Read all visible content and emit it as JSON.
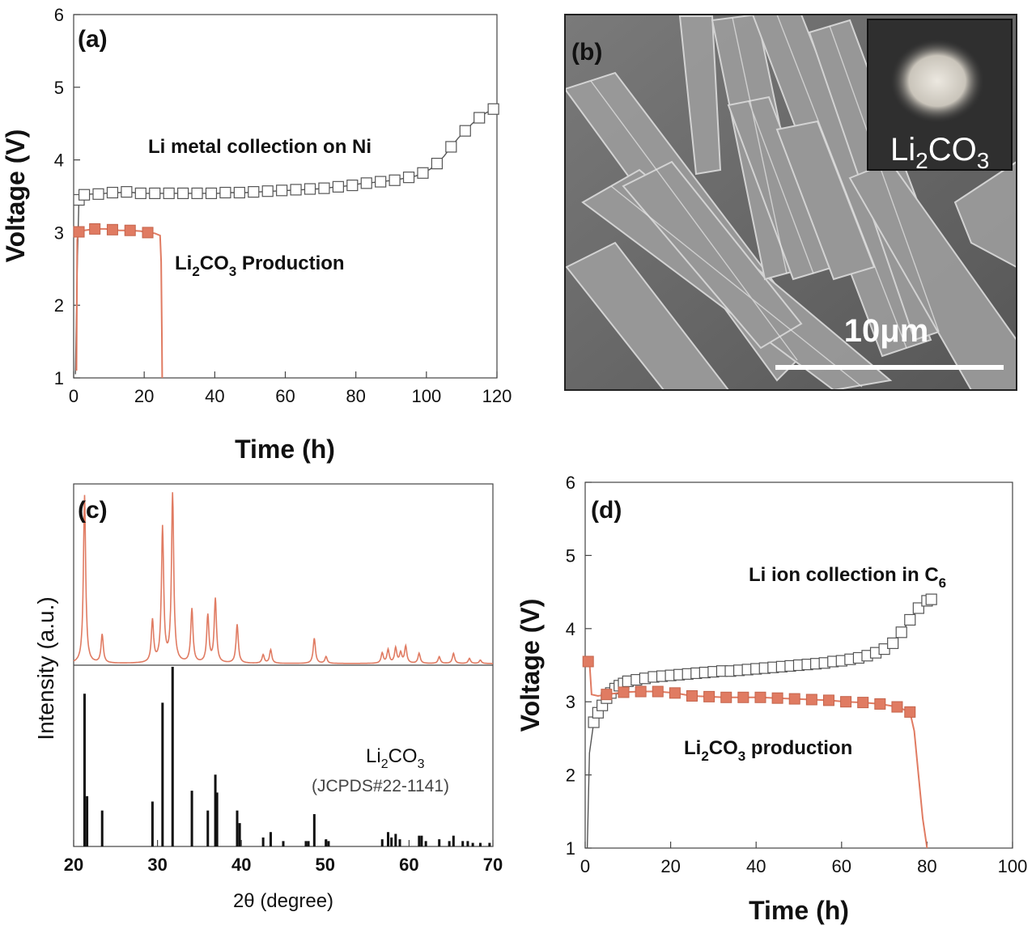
{
  "colors": {
    "orange": "#e07b62",
    "black": "#111111",
    "gray_marker": "#555555",
    "sem_bg": "#6e6e6e"
  },
  "panel_a": {
    "label": "(a)",
    "chart_data": {
      "type": "line",
      "xlabel": "Time (h)",
      "ylabel": "Voltage (V)",
      "xlim": [
        0,
        120
      ],
      "ylim": [
        1,
        6
      ],
      "xticks": [
        "0",
        "20",
        "40",
        "60",
        "80",
        "100",
        "120"
      ],
      "yticks": [
        "1",
        "2",
        "3",
        "4",
        "5",
        "6"
      ],
      "series": [
        {
          "name": "Li metal collection on Ni",
          "marker": "open-square",
          "x": [
            0.5,
            1,
            1.5,
            2,
            3,
            5,
            7,
            9,
            11,
            13,
            15,
            17,
            19,
            21,
            23,
            25,
            27,
            29,
            31,
            33,
            35,
            37,
            39,
            41,
            43,
            45,
            47,
            49,
            51,
            53,
            55,
            57,
            59,
            61,
            63,
            65,
            67,
            69,
            71,
            73,
            75,
            77,
            79,
            81,
            83,
            85,
            87,
            89,
            91,
            93,
            95,
            97,
            99,
            101,
            103,
            105,
            107,
            109,
            111,
            113,
            115,
            117,
            119,
            120
          ],
          "y": [
            1.05,
            2.5,
            3.45,
            3.5,
            3.52,
            3.53,
            3.53,
            3.54,
            3.55,
            3.55,
            3.56,
            3.55,
            3.54,
            3.54,
            3.54,
            3.54,
            3.54,
            3.54,
            3.54,
            3.54,
            3.54,
            3.54,
            3.54,
            3.54,
            3.55,
            3.55,
            3.55,
            3.55,
            3.56,
            3.56,
            3.57,
            3.57,
            3.58,
            3.58,
            3.59,
            3.59,
            3.6,
            3.6,
            3.61,
            3.62,
            3.63,
            3.64,
            3.65,
            3.67,
            3.68,
            3.69,
            3.7,
            3.71,
            3.72,
            3.74,
            3.76,
            3.78,
            3.82,
            3.87,
            3.95,
            4.05,
            4.18,
            4.3,
            4.4,
            4.5,
            4.58,
            4.65,
            4.7,
            4.72
          ],
          "marker_every": 2
        },
        {
          "name": "Li2CO3 Production",
          "marker": "filled-square",
          "x": [
            0.8,
            1,
            1.5,
            3,
            6,
            9,
            11,
            13,
            16,
            19,
            21,
            23,
            24.5,
            24.8,
            25,
            25.1
          ],
          "y": [
            1.1,
            2.9,
            3.01,
            3.03,
            3.05,
            3.05,
            3.04,
            3.03,
            3.03,
            3.02,
            3.0,
            2.99,
            2.96,
            2.6,
            1.6,
            1.0
          ],
          "marker_x": [
            1.5,
            6,
            11,
            16,
            21
          ]
        }
      ]
    },
    "annotations": {
      "li_metal": "Li metal collection on Ni",
      "prod_pre": "Li",
      "prod_sub": "2",
      "prod_mid": "CO",
      "prod_sub2": "3",
      "prod_post": " Production"
    }
  },
  "panel_b": {
    "label": "(b)",
    "inset_pre": "Li",
    "inset_sub": "2",
    "inset_mid": "CO",
    "inset_sub2": "3",
    "scale_bar": "10μm"
  },
  "panel_c": {
    "label": "(c)",
    "chart_data": {
      "type": "line",
      "xlabel": "2θ (degree)",
      "ylabel": "Intensity (a.u.)",
      "xlim": [
        20,
        70
      ],
      "xticks": [
        "20",
        "30",
        "40",
        "50",
        "60",
        "70"
      ],
      "pattern_peaks": [
        {
          "x": 21.3,
          "h": 1.0
        },
        {
          "x": 23.4,
          "h": 0.17
        },
        {
          "x": 29.4,
          "h": 0.25
        },
        {
          "x": 30.6,
          "h": 0.8
        },
        {
          "x": 31.8,
          "h": 1.0
        },
        {
          "x": 34.1,
          "h": 0.32
        },
        {
          "x": 36.0,
          "h": 0.28
        },
        {
          "x": 36.9,
          "h": 0.38
        },
        {
          "x": 39.5,
          "h": 0.23
        },
        {
          "x": 42.6,
          "h": 0.05
        },
        {
          "x": 43.5,
          "h": 0.08
        },
        {
          "x": 48.7,
          "h": 0.15
        },
        {
          "x": 50.1,
          "h": 0.04
        },
        {
          "x": 56.8,
          "h": 0.06
        },
        {
          "x": 57.5,
          "h": 0.08
        },
        {
          "x": 58.4,
          "h": 0.09
        },
        {
          "x": 59.0,
          "h": 0.06
        },
        {
          "x": 59.6,
          "h": 0.1
        },
        {
          "x": 61.2,
          "h": 0.06
        },
        {
          "x": 63.6,
          "h": 0.04
        },
        {
          "x": 65.3,
          "h": 0.06
        },
        {
          "x": 67.2,
          "h": 0.03
        },
        {
          "x": 68.5,
          "h": 0.02
        }
      ],
      "reference_lines": [
        {
          "x": 21.3,
          "h": 0.85
        },
        {
          "x": 21.6,
          "h": 0.28
        },
        {
          "x": 23.4,
          "h": 0.2
        },
        {
          "x": 29.4,
          "h": 0.25
        },
        {
          "x": 30.6,
          "h": 0.8
        },
        {
          "x": 31.8,
          "h": 1.0
        },
        {
          "x": 34.1,
          "h": 0.31
        },
        {
          "x": 36.0,
          "h": 0.2
        },
        {
          "x": 36.9,
          "h": 0.4
        },
        {
          "x": 37.1,
          "h": 0.3
        },
        {
          "x": 39.5,
          "h": 0.2
        },
        {
          "x": 39.8,
          "h": 0.13
        },
        {
          "x": 42.6,
          "h": 0.05
        },
        {
          "x": 43.5,
          "h": 0.08
        },
        {
          "x": 45.0,
          "h": 0.03
        },
        {
          "x": 47.7,
          "h": 0.03
        },
        {
          "x": 48.0,
          "h": 0.03
        },
        {
          "x": 48.7,
          "h": 0.18
        },
        {
          "x": 50.1,
          "h": 0.04
        },
        {
          "x": 50.4,
          "h": 0.03
        },
        {
          "x": 56.8,
          "h": 0.04
        },
        {
          "x": 57.5,
          "h": 0.08
        },
        {
          "x": 57.9,
          "h": 0.05
        },
        {
          "x": 58.4,
          "h": 0.07
        },
        {
          "x": 58.9,
          "h": 0.04
        },
        {
          "x": 61.2,
          "h": 0.06
        },
        {
          "x": 61.5,
          "h": 0.06
        },
        {
          "x": 62.0,
          "h": 0.03
        },
        {
          "x": 63.6,
          "h": 0.04
        },
        {
          "x": 64.8,
          "h": 0.03
        },
        {
          "x": 65.3,
          "h": 0.06
        },
        {
          "x": 66.4,
          "h": 0.03
        },
        {
          "x": 67.0,
          "h": 0.03
        },
        {
          "x": 67.6,
          "h": 0.02
        },
        {
          "x": 68.5,
          "h": 0.02
        },
        {
          "x": 69.6,
          "h": 0.02
        }
      ]
    },
    "ref_pre": "Li",
    "ref_sub": "2",
    "ref_mid": "CO",
    "ref_sub2": "3",
    "ref_code": "(JCPDS#22-1141)"
  },
  "panel_d": {
    "label": "(d)",
    "chart_data": {
      "type": "line",
      "xlabel": "Time (h)",
      "ylabel": "Voltage (V)",
      "xlim": [
        0,
        100
      ],
      "ylim": [
        1,
        6
      ],
      "xticks": [
        "0",
        "20",
        "40",
        "60",
        "80",
        "100"
      ],
      "yticks": [
        "1",
        "2",
        "3",
        "4",
        "5",
        "6"
      ],
      "series": [
        {
          "name": "Li ion collection in C6",
          "marker": "open-square",
          "x": [
            0.5,
            1,
            2,
            3,
            4,
            5,
            6,
            7,
            8,
            9,
            10,
            12,
            14,
            16,
            18,
            20,
            22,
            24,
            26,
            28,
            30,
            32,
            34,
            36,
            38,
            40,
            42,
            44,
            46,
            48,
            50,
            52,
            54,
            56,
            58,
            60,
            62,
            64,
            66,
            68,
            70,
            72,
            74,
            76,
            78,
            80,
            81
          ],
          "y": [
            1.0,
            2.3,
            2.72,
            2.85,
            2.95,
            3.05,
            3.12,
            3.18,
            3.22,
            3.25,
            3.28,
            3.3,
            3.32,
            3.34,
            3.35,
            3.36,
            3.37,
            3.38,
            3.39,
            3.4,
            3.41,
            3.42,
            3.42,
            3.43,
            3.44,
            3.45,
            3.46,
            3.47,
            3.48,
            3.49,
            3.5,
            3.51,
            3.52,
            3.53,
            3.55,
            3.56,
            3.58,
            3.6,
            3.63,
            3.67,
            3.72,
            3.8,
            3.95,
            4.12,
            4.28,
            4.38,
            4.4
          ],
          "marker_every": 1
        },
        {
          "name": "Li2CO3 production",
          "marker": "filled-square",
          "x": [
            0.7,
            1,
            1.5,
            3,
            5,
            9,
            13,
            17,
            21,
            25,
            29,
            33,
            37,
            41,
            45,
            49,
            53,
            57,
            61,
            65,
            69,
            73,
            76,
            77,
            78,
            79,
            80
          ],
          "y": [
            3.55,
            3.55,
            3.1,
            3.08,
            3.1,
            3.13,
            3.14,
            3.14,
            3.12,
            3.08,
            3.07,
            3.06,
            3.06,
            3.06,
            3.05,
            3.04,
            3.03,
            3.02,
            3.0,
            2.99,
            2.97,
            2.93,
            2.86,
            2.6,
            2.0,
            1.4,
            1.0
          ],
          "marker_x": [
            0.7,
            5,
            9,
            13,
            17,
            21,
            25,
            29,
            33,
            37,
            41,
            45,
            49,
            53,
            57,
            61,
            65,
            69,
            73,
            76
          ]
        }
      ]
    },
    "annotations": {
      "li_ion_pre": "Li ion collection in C",
      "li_ion_sub": "6",
      "prod_pre": "Li",
      "prod_sub": "2",
      "prod_mid": "CO",
      "prod_sub2": "3",
      "prod_post": " production"
    }
  }
}
